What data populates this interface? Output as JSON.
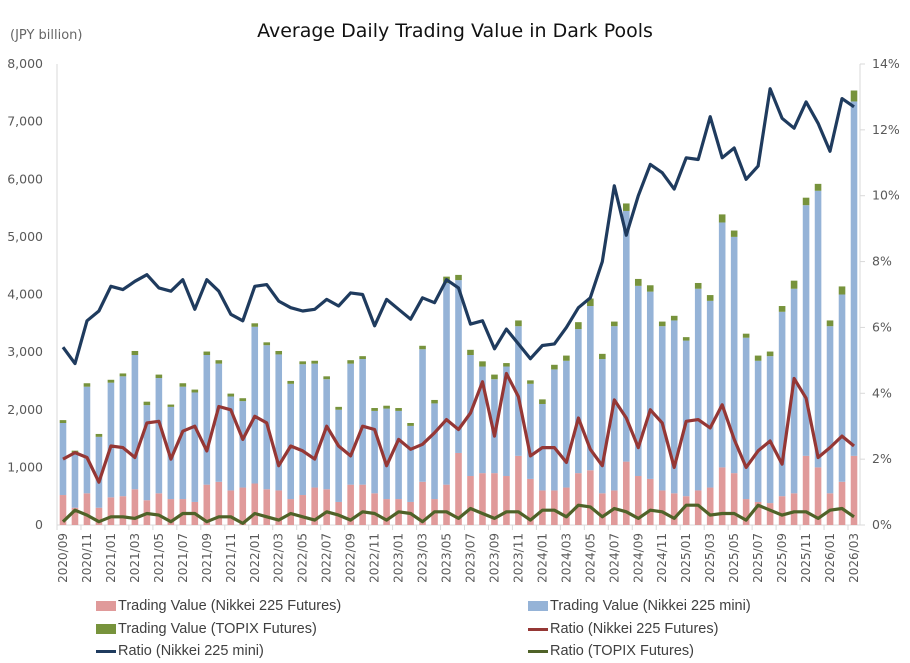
{
  "chart_data": {
    "type": "bar",
    "title": "Average Daily Trading Value in Dark Pools",
    "ylabel": "(JPY billion)",
    "ylim": [
      0,
      8000
    ],
    "y2lim": [
      0,
      14
    ],
    "yticks": [
      "0",
      "1,000",
      "2,000",
      "3,000",
      "4,000",
      "5,000",
      "6,000",
      "7,000",
      "8,000"
    ],
    "y2ticks": [
      "0%",
      "2%",
      "4%",
      "6%",
      "8%",
      "10%",
      "12%",
      "14%"
    ],
    "grid": false,
    "legend_position": "bottom",
    "categories": [
      "2020/09",
      "2020/10",
      "2020/11",
      "2020/12",
      "2021/01",
      "2021/02",
      "2021/03",
      "2021/04",
      "2021/05",
      "2021/06",
      "2021/07",
      "2021/08",
      "2021/09",
      "2021/10",
      "2021/11",
      "2021/12",
      "2022/01",
      "2022/02",
      "2022/03",
      "2022/04",
      "2022/05",
      "2022/06",
      "2022/07",
      "2022/08",
      "2022/09",
      "2022/10",
      "2022/11",
      "2022/12",
      "2023/01",
      "2023/02",
      "2023/03",
      "2023/04",
      "2023/05",
      "2023/06",
      "2023/07",
      "2023/08",
      "2023/09",
      "2023/10",
      "2023/11",
      "2023/12",
      "2024/01",
      "2024/02",
      "2024/03",
      "2024/04",
      "2024/05",
      "2024/06",
      "2024/07",
      "2024/08",
      "2024/09",
      "2024/10",
      "2024/11",
      "2024/12",
      "2025/01",
      "2025/02",
      "2025/03",
      "2025/04",
      "2025/05",
      "2025/06",
      "2025/07",
      "2025/08",
      "2025/09",
      "2025/10",
      "2025/11",
      "2025/12",
      "2026/01",
      "2026/02",
      "2026/03"
    ],
    "xtick_labels": [
      "2020/09",
      "2020/11",
      "2021/01",
      "2021/03",
      "2021/05",
      "2021/07",
      "2021/09",
      "2021/11",
      "2022/01",
      "2022/03",
      "2022/05",
      "2022/07",
      "2022/09",
      "2022/11",
      "2023/01",
      "2023/03",
      "2023/05",
      "2023/07",
      "2023/09",
      "2023/11",
      "2024/01",
      "2024/03",
      "2024/05",
      "2024/07",
      "2024/09",
      "2024/11",
      "2025/01",
      "2025/03",
      "2025/05",
      "2025/07",
      "2025/09",
      "2025/11",
      "2026/01",
      "2026/03"
    ],
    "series": [
      {
        "name": "Trading Value (Nikkei 225 Futures)",
        "type": "bar",
        "axis": "left",
        "color": "#e09a9a",
        "values": [
          520,
          300,
          550,
          300,
          480,
          500,
          620,
          430,
          550,
          450,
          450,
          400,
          700,
          750,
          600,
          650,
          720,
          620,
          600,
          450,
          520,
          650,
          620,
          400,
          700,
          700,
          550,
          450,
          450,
          400,
          750,
          450,
          700,
          1250,
          850,
          900,
          900,
          850,
          1200,
          800,
          600,
          600,
          650,
          900,
          950,
          550,
          600,
          1100,
          850,
          800,
          600,
          550,
          500,
          600,
          650,
          1000,
          900,
          450,
          400,
          380,
          500,
          550,
          1200,
          1000,
          550,
          750,
          1200
        ]
      },
      {
        "name": "Trading Value (Nikkei 225 mini)",
        "type": "bar",
        "axis": "left",
        "color": "#95b3d7",
        "values": [
          1250,
          940,
          1850,
          1230,
          1990,
          2080,
          2330,
          1650,
          2000,
          1600,
          1950,
          1900,
          2250,
          2050,
          1630,
          1500,
          2720,
          2500,
          2360,
          2000,
          2270,
          2150,
          1910,
          1600,
          2100,
          2180,
          1430,
          1570,
          1530,
          1320,
          2300,
          1660,
          3500,
          3000,
          2100,
          1850,
          1630,
          1900,
          2250,
          1650,
          1500,
          2100,
          2200,
          2500,
          2850,
          2330,
          2850,
          4350,
          3300,
          3250,
          2850,
          3000,
          2700,
          3500,
          3240,
          4250,
          4100,
          2800,
          2450,
          2550,
          3200,
          3550,
          4350,
          4800,
          2900,
          3250,
          6150
        ]
      },
      {
        "name": "Trading Value (TOPIX Futures)",
        "type": "bar",
        "axis": "left",
        "color": "#77933c",
        "values": [
          50,
          50,
          60,
          50,
          50,
          50,
          70,
          60,
          60,
          40,
          60,
          50,
          60,
          60,
          50,
          50,
          60,
          50,
          60,
          50,
          50,
          50,
          50,
          50,
          60,
          50,
          50,
          50,
          50,
          50,
          60,
          60,
          110,
          90,
          90,
          90,
          80,
          60,
          100,
          60,
          80,
          80,
          90,
          120,
          130,
          90,
          80,
          130,
          120,
          110,
          80,
          80,
          60,
          100,
          100,
          140,
          110,
          70,
          90,
          80,
          100,
          140,
          130,
          120,
          100,
          140,
          190
        ]
      },
      {
        "name": "Ratio (Nikkei 225 Futures)",
        "type": "line",
        "axis": "right",
        "color": "#953735",
        "values": [
          2.0,
          2.2,
          2.05,
          1.3,
          2.4,
          2.35,
          2.05,
          3.1,
          3.15,
          2.0,
          2.85,
          3.0,
          2.25,
          3.6,
          3.5,
          2.6,
          3.3,
          3.1,
          1.8,
          2.4,
          2.25,
          2.0,
          3.0,
          2.4,
          2.1,
          3.0,
          2.9,
          1.8,
          2.6,
          2.3,
          2.45,
          2.8,
          3.2,
          2.9,
          3.4,
          4.35,
          2.7,
          4.6,
          3.9,
          2.1,
          2.35,
          2.35,
          1.9,
          3.25,
          2.3,
          1.8,
          3.8,
          3.25,
          2.35,
          3.5,
          3.1,
          1.75,
          3.15,
          3.2,
          2.95,
          3.65,
          2.6,
          1.75,
          2.25,
          2.55,
          1.85,
          4.45,
          3.85,
          2.05,
          2.35,
          2.7,
          2.4
        ]
      },
      {
        "name": "Ratio (Nikkei 225 mini)",
        "type": "line",
        "axis": "right",
        "color": "#1f3b5e",
        "values": [
          5.4,
          4.9,
          6.2,
          6.5,
          7.25,
          7.15,
          7.4,
          7.6,
          7.2,
          7.1,
          7.45,
          6.55,
          7.45,
          7.1,
          6.4,
          6.2,
          7.25,
          7.3,
          6.8,
          6.6,
          6.5,
          6.55,
          6.85,
          6.65,
          7.05,
          7.0,
          6.05,
          6.85,
          6.55,
          6.25,
          6.9,
          6.75,
          7.45,
          7.2,
          6.1,
          6.2,
          5.35,
          5.95,
          5.5,
          5.05,
          5.45,
          5.5,
          6.0,
          6.6,
          6.9,
          8.0,
          10.3,
          8.8,
          10.0,
          10.95,
          10.7,
          10.2,
          11.15,
          11.1,
          12.4,
          11.15,
          11.45,
          10.5,
          10.9,
          13.25,
          12.35,
          12.05,
          12.85,
          12.2,
          11.35,
          12.95,
          12.7
        ]
      },
      {
        "name": "Ratio (TOPIX Futures)",
        "type": "line",
        "axis": "right",
        "color": "#4f6228",
        "values": [
          0.1,
          0.45,
          0.3,
          0.1,
          0.25,
          0.25,
          0.2,
          0.35,
          0.3,
          0.1,
          0.35,
          0.35,
          0.1,
          0.25,
          0.25,
          0.05,
          0.35,
          0.25,
          0.15,
          0.35,
          0.25,
          0.15,
          0.4,
          0.3,
          0.15,
          0.4,
          0.35,
          0.15,
          0.4,
          0.35,
          0.1,
          0.4,
          0.4,
          0.2,
          0.5,
          0.35,
          0.2,
          0.4,
          0.4,
          0.15,
          0.45,
          0.45,
          0.25,
          0.6,
          0.55,
          0.25,
          0.5,
          0.4,
          0.2,
          0.45,
          0.4,
          0.2,
          0.6,
          0.6,
          0.3,
          0.35,
          0.35,
          0.15,
          0.6,
          0.45,
          0.3,
          0.4,
          0.4,
          0.2,
          0.45,
          0.5,
          0.25
        ]
      }
    ]
  }
}
